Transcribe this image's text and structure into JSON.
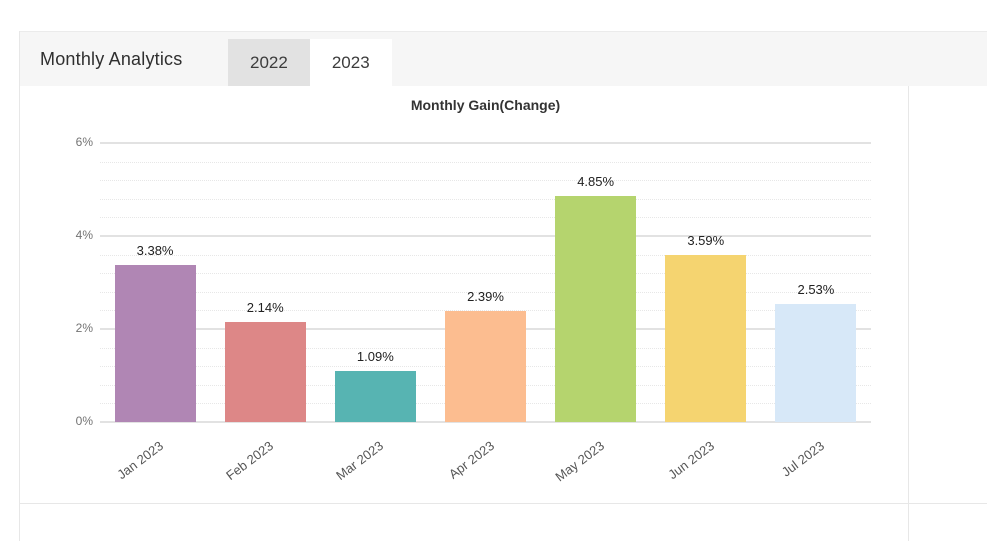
{
  "header": {
    "title": "Monthly Analytics",
    "tabs": [
      {
        "label": "2022",
        "active": false
      },
      {
        "label": "2023",
        "active": true
      }
    ]
  },
  "chart_data": {
    "type": "bar",
    "title": "Monthly Gain(Change)",
    "categories": [
      "Jan 2023",
      "Feb 2023",
      "Mar 2023",
      "Apr 2023",
      "May 2023",
      "Jun 2023",
      "Jul 2023"
    ],
    "values": [
      3.38,
      2.14,
      1.09,
      2.39,
      4.85,
      3.59,
      2.53
    ],
    "labels": [
      "3.38%",
      "2.14%",
      "1.09%",
      "2.39%",
      "4.85%",
      "3.59%",
      "2.53%"
    ],
    "bar_colors": [
      "#b086b4",
      "#dd8787",
      "#57b4b2",
      "#fcbd90",
      "#b5d46e",
      "#f5d470",
      "#d7e8f8"
    ],
    "xlabel": "",
    "ylabel": "",
    "yticks": [
      "0%",
      "2%",
      "4%",
      "6%"
    ],
    "ytick_values": [
      0,
      2,
      4,
      6
    ],
    "ylim": [
      0,
      6
    ],
    "grid": {
      "major_step": 2,
      "minor_step": 0.4,
      "major_color": "#e2e2e2",
      "minor_color": "#e7e7e7"
    },
    "legend": "none"
  }
}
